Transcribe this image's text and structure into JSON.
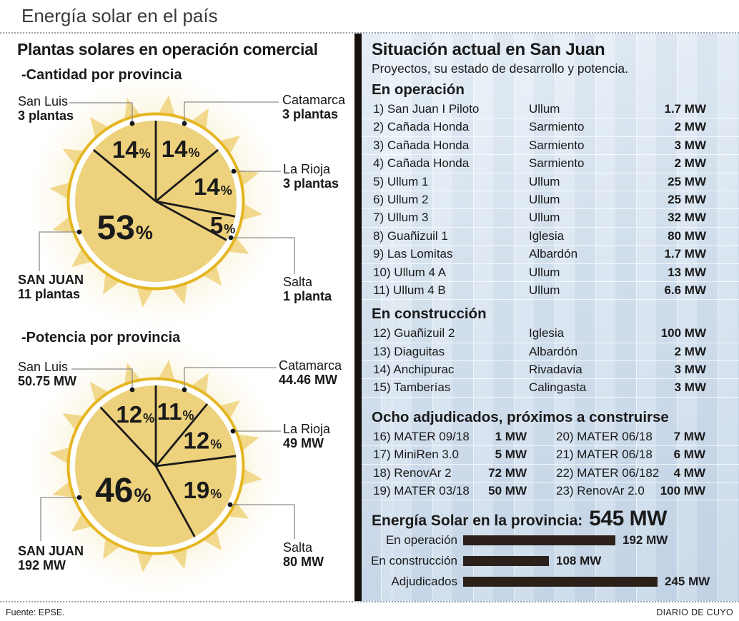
{
  "page": {
    "title": "Energía solar en el país",
    "source": "Fuente: EPSE.",
    "credit": "DIARIO DE CUYO"
  },
  "colors": {
    "sun_disc": "#edd17c",
    "sun_ray": "#f2d88c",
    "sun_ring": "#e5b622",
    "sun_glow": "#f8eec6",
    "slice_line": "#1a1a1a",
    "leader_line": "#8c8c8c",
    "panel_top": "#ecf3fa",
    "panel_bottom": "#c6d7e8",
    "bar": "#2b211a",
    "divider": "#17110d"
  },
  "left": {
    "heading": "Plantas solares en operación comercial"
  },
  "right": {
    "title": "Situación actual en San Juan",
    "subtitle": "Proyectos, su estado de desarrollo y potencia.",
    "sections": [
      {
        "heading": "En operación",
        "rows": [
          {
            "name": "1) San Juan I Piloto",
            "dept": "Ullum",
            "mw": "1.7 MW"
          },
          {
            "name": "2) Cañada Honda",
            "dept": "Sarmiento",
            "mw": "2 MW"
          },
          {
            "name": "3) Cañada Honda",
            "dept": "Sarmiento",
            "mw": "3 MW"
          },
          {
            "name": "4) Cañada Honda",
            "dept": "Sarmiento",
            "mw": "2 MW"
          },
          {
            "name": "5) Ullum 1",
            "dept": "Ullum",
            "mw": "25 MW"
          },
          {
            "name": "6) Ullum 2",
            "dept": "Ullum",
            "mw": "25 MW"
          },
          {
            "name": "7) Ullum 3",
            "dept": "Ullum",
            "mw": "32 MW"
          },
          {
            "name": "8) Guañizuil 1",
            "dept": "Iglesia",
            "mw": "80 MW"
          },
          {
            "name": "9) Las Lomitas",
            "dept": "Albardón",
            "mw": "1.7 MW"
          },
          {
            "name": "10) Ullum 4 A",
            "dept": "Ullum",
            "mw": "13 MW"
          },
          {
            "name": "11) Ullum 4 B",
            "dept": "Ullum",
            "mw": "6.6 MW"
          }
        ]
      },
      {
        "heading": "En construcción",
        "rows": [
          {
            "name": "12) Guañizuil 2",
            "dept": "Iglesia",
            "mw": "100 MW"
          },
          {
            "name": "13) Diaguitas",
            "dept": "Albardón",
            "mw": "2 MW"
          },
          {
            "name": "14) Anchipurac",
            "dept": "Rivadavia",
            "mw": "3 MW"
          },
          {
            "name": "15) Tamberías",
            "dept": "Calingasta",
            "mw": "3 MW"
          }
        ]
      }
    ],
    "adjudicados": {
      "heading": "Ocho adjudicados, próximos a construirse",
      "rows": [
        {
          "left": {
            "name": "16) MATER 09/18",
            "mw": "1 MW"
          },
          "right": {
            "name": "20) MATER 06/18",
            "mw": "7 MW"
          }
        },
        {
          "left": {
            "name": "17) MiniRen 3.0",
            "mw": "5 MW"
          },
          "right": {
            "name": "21) MATER 06/18",
            "mw": "6 MW"
          }
        },
        {
          "left": {
            "name": "18) RenovAr 2",
            "mw": "72 MW"
          },
          "right": {
            "name": "22) MATER 06/182",
            "mw": "4 MW"
          }
        },
        {
          "left": {
            "name": "19) MATER 03/18",
            "mw": "50 MW"
          },
          "right": {
            "name": "23) RenovAr 2.0",
            "mw": "100 MW"
          }
        }
      ]
    },
    "summary": {
      "heading": "Energía Solar en la provincia:",
      "total": "545 MW"
    }
  },
  "chart_data": [
    {
      "type": "pie",
      "title": "-Cantidad por provincia",
      "unit": "plantas",
      "slices": [
        {
          "label": "Catamarca",
          "value_label": "3 plantas",
          "value": 3,
          "pct": 14,
          "label_frac": 0.72
        },
        {
          "label": "La Rioja",
          "value_label": "3 plantas",
          "value": 3,
          "pct": 14,
          "label_frac": 0.73
        },
        {
          "label": "Salta",
          "value_label": "1 planta",
          "value": 1,
          "pct": 5,
          "label_frac": 0.88
        },
        {
          "label": "SAN JUAN",
          "value_label": "11 plantas",
          "value": 11,
          "pct": 53,
          "label_frac": 0.5,
          "label_angle": 230
        },
        {
          "label": "San Luis",
          "value_label": "3 plantas",
          "value": 3,
          "pct": 14,
          "label_frac": 0.71
        }
      ]
    },
    {
      "type": "pie",
      "title": "-Potencia por provincia",
      "unit": "MW",
      "slices": [
        {
          "label": "Catamarca",
          "value_label": "44.46 MW",
          "value": 44.46,
          "pct": 11,
          "label_frac": 0.72
        },
        {
          "label": "La Rioja",
          "value_label": "49 MW",
          "value": 49,
          "pct": 12,
          "label_frac": 0.66
        },
        {
          "label": "Salta",
          "value_label": "80 MW",
          "value": 80,
          "pct": 19,
          "label_frac": 0.65
        },
        {
          "label": "SAN JUAN",
          "value_label": "192 MW",
          "value": 192,
          "pct": 46,
          "label_frac": 0.5
        },
        {
          "label": "San Luis",
          "value_label": "50.75 MW",
          "value": 50.75,
          "pct": 12,
          "label_frac": 0.69
        }
      ]
    },
    {
      "type": "bar",
      "title": "Energía Solar en la provincia: 545 MW",
      "unit": "MW",
      "categories": [
        "En operación",
        "En construcción",
        "Adjudicados"
      ],
      "values": [
        192,
        108,
        245
      ],
      "value_labels": [
        "192 MW",
        "108 MW",
        "245 MW"
      ]
    }
  ]
}
